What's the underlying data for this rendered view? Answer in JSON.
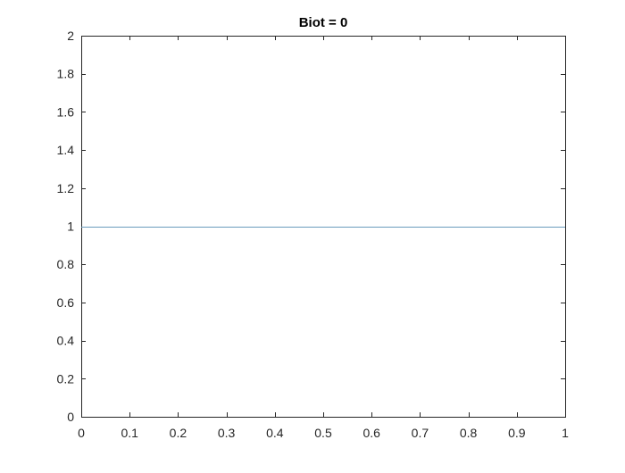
{
  "chart_data": {
    "type": "line",
    "title": "Biot = 0",
    "xlabel": "",
    "ylabel": "",
    "xlim": [
      0,
      1
    ],
    "ylim": [
      0,
      2
    ],
    "xticks": [
      0,
      0.1,
      0.2,
      0.3,
      0.4,
      0.5,
      0.6,
      0.7,
      0.8,
      0.9,
      1
    ],
    "xtick_labels": [
      "0",
      "0.1",
      "0.2",
      "0.3",
      "0.4",
      "0.5",
      "0.6",
      "0.7",
      "0.8",
      "0.9",
      "1"
    ],
    "yticks": [
      0,
      0.2,
      0.4,
      0.6,
      0.8,
      1,
      1.2,
      1.4,
      1.6,
      1.8,
      2
    ],
    "ytick_labels": [
      "0",
      "0.2",
      "0.4",
      "0.6",
      "0.8",
      "1",
      "1.2",
      "1.4",
      "1.6",
      "1.8",
      "2"
    ],
    "grid": false,
    "box": true,
    "series": [
      {
        "x": [
          0,
          1
        ],
        "y": [
          1,
          1
        ],
        "color": "#6a9bbd"
      }
    ]
  },
  "colors": {
    "axes": "#262626",
    "background": "#ffffff"
  }
}
